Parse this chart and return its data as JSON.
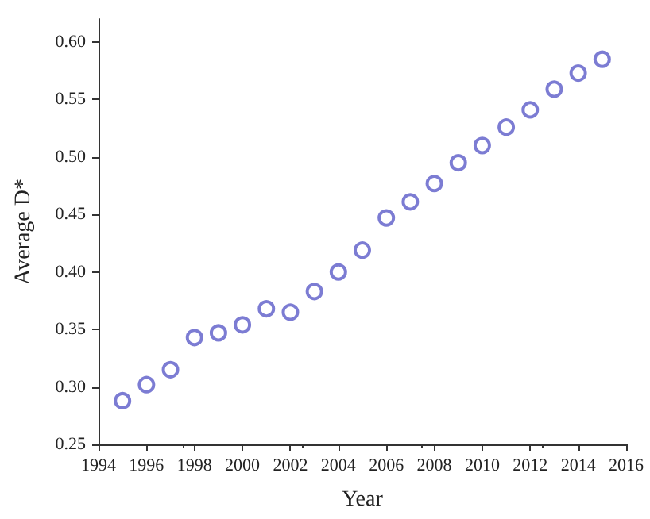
{
  "chart_data": {
    "type": "scatter",
    "xlabel": "Year",
    "ylabel": "Average D*",
    "x": [
      1995,
      1996,
      1997,
      1998,
      1999,
      2000,
      2001,
      2002,
      2003,
      2004,
      2005,
      2006,
      2007,
      2008,
      2009,
      2010,
      2011,
      2012,
      2013,
      2014,
      2015
    ],
    "series": [
      {
        "color": "#5b5bc8",
        "values": [
          0.288,
          0.302,
          0.315,
          0.343,
          0.347,
          0.354,
          0.368,
          0.365,
          0.383,
          0.4,
          0.419,
          0.447,
          0.461,
          0.477,
          0.495,
          0.51,
          0.526,
          0.541,
          0.559,
          0.573,
          0.585
        ]
      }
    ],
    "marker": "circle",
    "grid": false,
    "xlim": [
      1994,
      2016
    ],
    "xticks": [
      1994,
      1996,
      1998,
      2000,
      2002,
      2004,
      2006,
      2008,
      2010,
      2012,
      2014,
      2016
    ],
    "ylim": [
      0.25,
      0.62
    ],
    "yticks": [
      0.25,
      {
        "value": 0.3,
        "label": "0.30"
      },
      0.35,
      {
        "value": 0.4,
        "label": "0.40"
      },
      0.45,
      {
        "value": 0.5,
        "label": "0.50"
      },
      0.55,
      {
        "value": 0.6,
        "label": "0.60"
      }
    ]
  }
}
